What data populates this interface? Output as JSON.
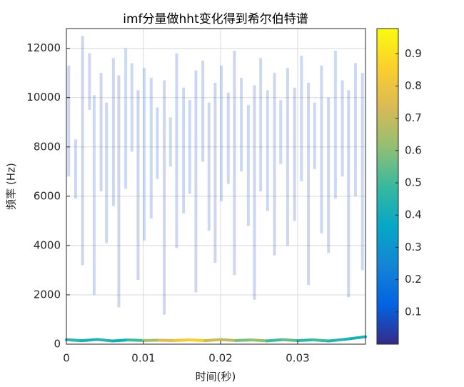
{
  "chart_data": {
    "type": "hht-spectrum",
    "title": "imf分量做hht变化得到希尔伯特谱",
    "xlabel": "时间(秒)",
    "ylabel": "频率 (Hz)",
    "xlim": [
      0,
      0.0388
    ],
    "ylim": [
      0,
      12800
    ],
    "xticks": [
      0,
      0.01,
      0.02,
      0.03
    ],
    "yticks": [
      0,
      2000,
      4000,
      6000,
      8000,
      10000,
      12000
    ],
    "grid": true,
    "clim": [
      0,
      0.978
    ],
    "cticks": [
      0.1,
      0.2,
      0.3,
      0.4,
      0.5,
      0.6,
      0.7,
      0.8,
      0.9
    ],
    "colormap": [
      "#352A87",
      "#0363E1",
      "#1485D4",
      "#06A7C6",
      "#38B99E",
      "#92BF73",
      "#D9BA56",
      "#FCCE2E",
      "#F9FB0E"
    ],
    "segments": {
      "x": [
        0.0003,
        0.0012,
        0.0021,
        0.003,
        0.0036,
        0.0045,
        0.0052,
        0.0061,
        0.0068,
        0.0077,
        0.0085,
        0.0093,
        0.0101,
        0.011,
        0.0118,
        0.0127,
        0.0135,
        0.0143,
        0.0152,
        0.016,
        0.0168,
        0.0177,
        0.0185,
        0.0193,
        0.0201,
        0.021,
        0.0218,
        0.0227,
        0.0236,
        0.0244,
        0.0252,
        0.0261,
        0.027,
        0.0278,
        0.0287,
        0.0296,
        0.0305,
        0.0314,
        0.0322,
        0.0331,
        0.034,
        0.0349,
        0.0358,
        0.0366,
        0.0375,
        0.0384
      ],
      "low": [
        6800,
        5900,
        3200,
        9500,
        2000,
        6200,
        4100,
        5600,
        1500,
        6300,
        7800,
        2600,
        4200,
        5100,
        6700,
        1200,
        7200,
        3900,
        5300,
        6100,
        2100,
        7400,
        4600,
        3300,
        5800,
        6500,
        2800,
        7000,
        4800,
        1800,
        6200,
        5400,
        3600,
        7300,
        4000,
        5000,
        6600,
        2400,
        7100,
        4500,
        3700,
        5900,
        6800,
        1900,
        6000,
        3000
      ],
      "high": [
        11300,
        8300,
        12500,
        11800,
        10100,
        11000,
        9800,
        11600,
        10900,
        12000,
        11400,
        10300,
        11200,
        10800,
        9600,
        10700,
        9200,
        11800,
        10400,
        9900,
        11100,
        11500,
        9800,
        10600,
        11300,
        10200,
        11900,
        10800,
        9700,
        10500,
        11600,
        10300,
        11000,
        9900,
        11200,
        10400,
        11700,
        10600,
        9800,
        11300,
        10000,
        11900,
        10700,
        10300,
        11400,
        11000
      ],
      "intensity": [
        0.06,
        0.08,
        0.05,
        0.07,
        0.09,
        0.06,
        0.08,
        0.07,
        0.05,
        0.1,
        0.09,
        0.06,
        0.11,
        0.08,
        0.07,
        0.06,
        0.1,
        0.07,
        0.08,
        0.09,
        0.06,
        0.08,
        0.07,
        0.05,
        0.11,
        0.07,
        0.06,
        0.09,
        0.08,
        0.05,
        0.07,
        0.08,
        0.06,
        0.1,
        0.07,
        0.06,
        0.09,
        0.05,
        0.08,
        0.07,
        0.06,
        0.1,
        0.08,
        0.06,
        0.09,
        0.07
      ]
    },
    "ridge": {
      "x": [
        0,
        0.002,
        0.004,
        0.006,
        0.008,
        0.01,
        0.012,
        0.014,
        0.016,
        0.018,
        0.02,
        0.022,
        0.024,
        0.026,
        0.028,
        0.03,
        0.032,
        0.034,
        0.036,
        0.0388
      ],
      "values": [
        180,
        140,
        190,
        130,
        170,
        150,
        160,
        145,
        175,
        140,
        185,
        150,
        170,
        135,
        180,
        145,
        175,
        130,
        190,
        300
      ],
      "intensity": [
        0.45,
        0.42,
        0.45,
        0.4,
        0.5,
        0.65,
        0.75,
        0.82,
        0.85,
        0.72,
        0.68,
        0.58,
        0.62,
        0.5,
        0.55,
        0.47,
        0.5,
        0.45,
        0.42,
        0.4
      ]
    }
  }
}
